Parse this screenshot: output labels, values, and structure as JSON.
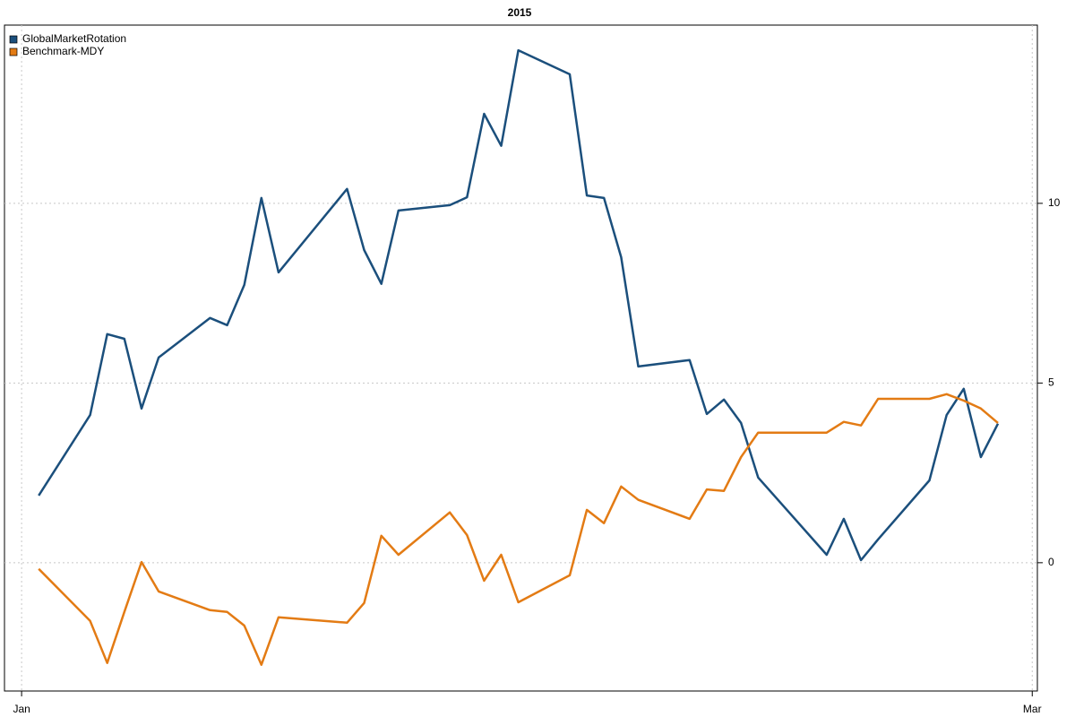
{
  "chart_data": {
    "type": "line",
    "title": "2015",
    "x": [
      1,
      4,
      5,
      6,
      7,
      8,
      11,
      12,
      13,
      14,
      15,
      19,
      20,
      21,
      22,
      25,
      26,
      27,
      28,
      29,
      32,
      33,
      34,
      35,
      36,
      39,
      40,
      41,
      42,
      43,
      47,
      48,
      49,
      50,
      53,
      54,
      55,
      56,
      57
    ],
    "series": [
      {
        "name": "GlobalMarketRotation",
        "color": "#1b4f7c",
        "values": [
          1.87,
          4.11,
          6.36,
          6.23,
          4.29,
          5.71,
          6.81,
          6.61,
          7.73,
          10.15,
          8.08,
          10.4,
          8.7,
          7.76,
          9.8,
          9.95,
          10.17,
          12.49,
          11.6,
          14.26,
          13.59,
          10.22,
          10.15,
          8.5,
          5.46,
          5.64,
          4.14,
          4.54,
          3.89,
          2.37,
          0.22,
          1.22,
          0.07,
          0.65,
          2.29,
          4.11,
          4.84,
          2.94,
          3.87
        ]
      },
      {
        "name": "Benchmark-MDY",
        "color": "#e37b14",
        "values": [
          -0.17,
          -1.62,
          -2.79,
          -1.37,
          0.02,
          -0.8,
          -1.32,
          -1.37,
          -1.75,
          -2.84,
          -1.52,
          -1.67,
          -1.12,
          0.75,
          0.22,
          1.4,
          0.77,
          -0.5,
          0.22,
          -1.1,
          -0.35,
          1.47,
          1.1,
          2.12,
          1.75,
          1.22,
          2.04,
          2.0,
          2.94,
          3.62,
          3.62,
          3.92,
          3.82,
          4.56,
          4.56,
          4.69,
          4.51,
          4.29,
          3.89
        ]
      }
    ],
    "xlim": [
      -1,
      59.3
    ],
    "xticks": [
      {
        "value": 0,
        "label": "Jan"
      },
      {
        "value": 59,
        "label": "Mar"
      }
    ],
    "ylim": [
      -3.57,
      14.96
    ],
    "yticks": [
      0,
      5,
      10
    ],
    "grid": true,
    "legend": "top-left"
  }
}
